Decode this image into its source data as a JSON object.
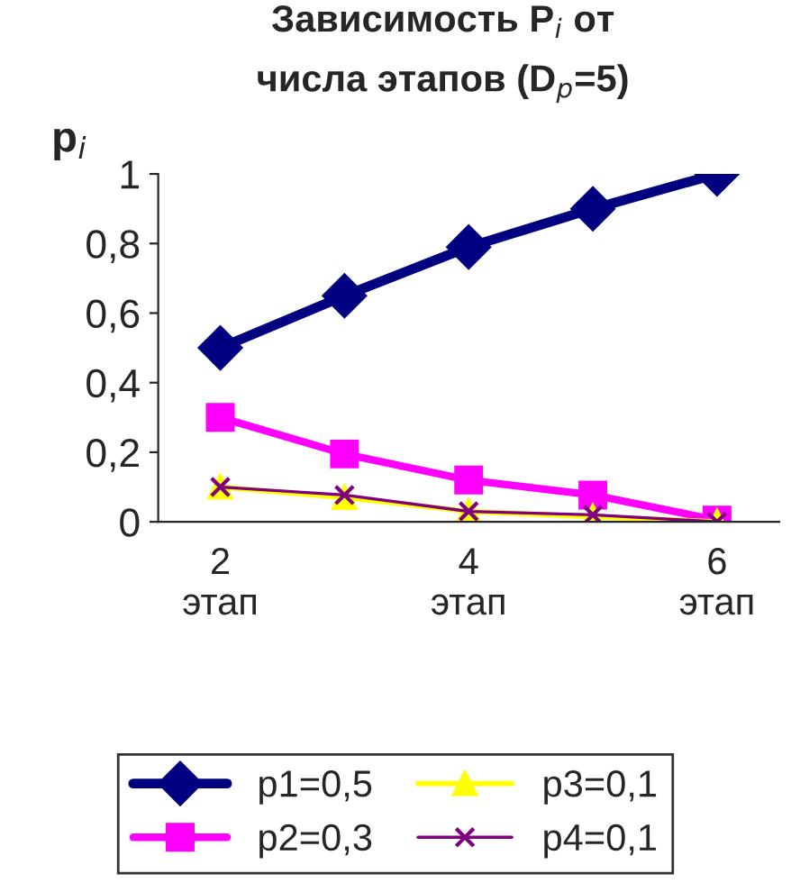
{
  "chart_data": {
    "type": "line",
    "title": "Зависимость P$_{i}$ от\nчисла этапов (D$_{p}$=5)",
    "ylabel": "p$_{i}$",
    "categories": [
      "2\nэтап",
      null,
      "4\nэтап",
      null,
      "6\nэтап"
    ],
    "series": [
      {
        "name": "p1=0,5",
        "color": "#000080",
        "marker": "diamond",
        "values": [
          0.5,
          0.65,
          0.79,
          0.9,
          1.0
        ]
      },
      {
        "name": "p2=0,3",
        "color": "#ff00ff",
        "marker": "square",
        "values": [
          0.3,
          0.195,
          0.12,
          0.077,
          0.005
        ]
      },
      {
        "name": "p3=0,1",
        "color": "#ffff00",
        "marker": "triangle",
        "values": [
          0.1,
          0.07,
          0.03,
          0.015,
          0.0
        ]
      },
      {
        "name": "p4=0,1",
        "color": "#800080",
        "marker": "cross",
        "values": [
          0.1,
          0.077,
          0.03,
          0.02,
          0.0
        ]
      }
    ],
    "ylim": [
      0,
      1
    ],
    "yticks": [
      0,
      {
        "value": 0.2,
        "label": "0,2"
      },
      {
        "value": 0.4,
        "label": "0,4"
      },
      {
        "value": 0.6,
        "label": "0,6"
      },
      {
        "value": 0.8,
        "label": "0,8"
      },
      1
    ],
    "grid": false,
    "legend": "bottom",
    "line_style": "solid"
  }
}
